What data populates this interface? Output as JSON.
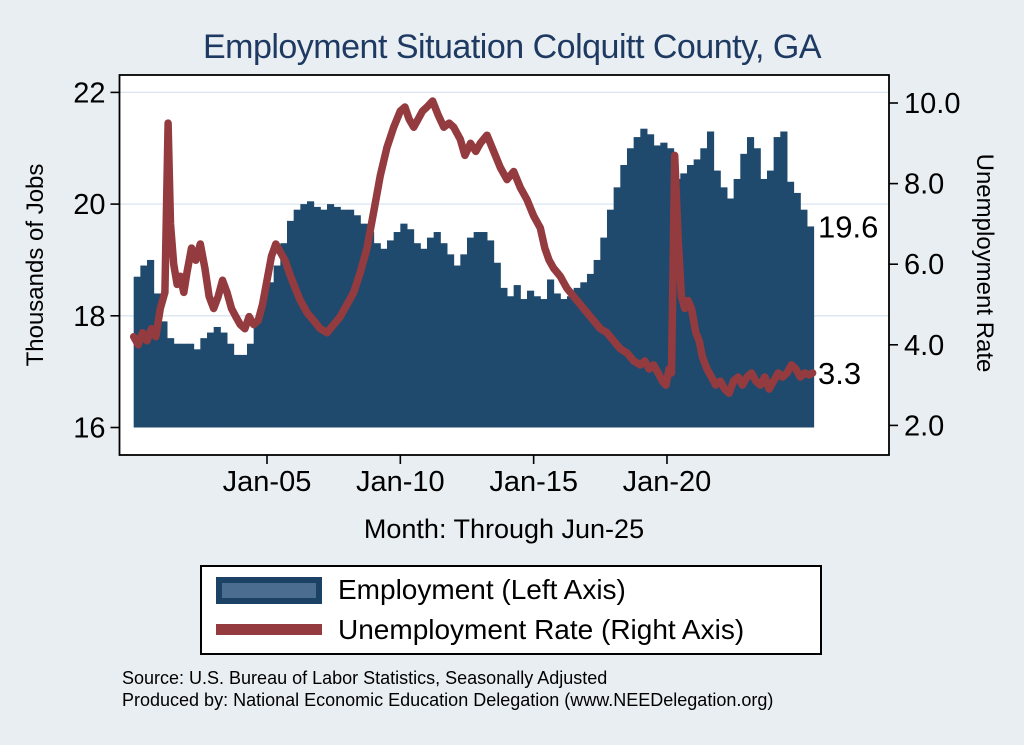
{
  "title": "Employment Situation Colquitt  County, GA",
  "footer": {
    "line1": "Source: U.S. Bureau of Labor Statistics, Seasonally Adjusted",
    "line2": "Produced by: National Economic Education Delegation (www.NEEDelegation.org)"
  },
  "legend": {
    "items": [
      {
        "label": "Employment (Left Axis)",
        "swatch": "bar"
      },
      {
        "label": "Unemployment Rate (Right Axis)",
        "swatch": "line"
      }
    ]
  },
  "colors": {
    "background": "#e9eef2",
    "plot_background": "#ffffff",
    "bar": "#1f4a6d",
    "bar_swatch_outer": "#1b4165",
    "bar_swatch_inner": "#4a6d90",
    "line": "#943b3f",
    "title_text": "#1e3a62",
    "gridline": "#d9e5f0",
    "axis_text": "#000000"
  },
  "chart_data": {
    "type": "combo",
    "title": "Employment Situation Colquitt  County, GA",
    "x_axis": {
      "caption": "Month: Through Jun-25",
      "ticks": [
        {
          "label": "Jan-05",
          "t": 2005.0
        },
        {
          "label": "Jan-10",
          "t": 2010.0
        },
        {
          "label": "Jan-15",
          "t": 2015.0
        },
        {
          "label": "Jan-20",
          "t": 2020.0
        }
      ]
    },
    "left_axis": {
      "label": "Thousands of Jobs",
      "ticks": [
        16,
        18,
        20,
        22
      ],
      "range": [
        16,
        22.8
      ]
    },
    "right_axis": {
      "label": "Unemployment Rate",
      "tick_labels": [
        "2.0",
        "4.0",
        "6.0",
        "8.0",
        "10.0"
      ],
      "tick_values": [
        2,
        4,
        6,
        8,
        10
      ],
      "range": [
        2,
        10.5
      ]
    },
    "annotations": [
      {
        "text": "19.6",
        "axis": "left",
        "value": 19.6
      },
      {
        "text": "3.3",
        "axis": "right",
        "value": 3.3
      }
    ],
    "series": [
      {
        "name": "Employment (Left Axis)",
        "type": "bar",
        "axis": "left",
        "unit": "thousands of jobs",
        "frequency": "quarterly",
        "start_t": 2000.0,
        "step_t": 0.25,
        "values": [
          18.7,
          18.9,
          19.0,
          18.4,
          17.9,
          17.6,
          17.5,
          17.5,
          17.5,
          17.4,
          17.6,
          17.7,
          17.8,
          17.7,
          17.5,
          17.3,
          17.3,
          17.5,
          17.9,
          18.3,
          18.6,
          18.9,
          19.3,
          19.7,
          19.9,
          20.0,
          20.05,
          19.95,
          19.9,
          20.0,
          19.95,
          19.9,
          19.9,
          19.8,
          19.65,
          19.5,
          19.3,
          19.2,
          19.35,
          19.5,
          19.65,
          19.55,
          19.3,
          19.2,
          19.4,
          19.5,
          19.3,
          19.1,
          18.9,
          19.1,
          19.4,
          19.5,
          19.5,
          19.35,
          18.95,
          18.5,
          18.35,
          18.55,
          18.3,
          18.45,
          18.35,
          18.3,
          18.65,
          18.4,
          18.3,
          18.35,
          18.5,
          18.6,
          18.75,
          19.0,
          19.4,
          19.9,
          20.3,
          20.7,
          21.0,
          21.2,
          21.35,
          21.25,
          21.05,
          21.1,
          21.0,
          20.45,
          20.55,
          20.7,
          20.8,
          21.0,
          21.3,
          20.6,
          20.3,
          20.1,
          20.45,
          20.9,
          21.2,
          21.0,
          20.45,
          20.6,
          21.2,
          21.3,
          20.4,
          20.2,
          19.9,
          19.6
        ],
        "last_value": 19.6
      },
      {
        "name": "Unemployment Rate (Right Axis)",
        "type": "line",
        "axis": "right",
        "unit": "percent",
        "keypoints": [
          [
            2000.0,
            4.2
          ],
          [
            2000.17,
            4.0
          ],
          [
            2000.33,
            4.3
          ],
          [
            2000.5,
            4.1
          ],
          [
            2000.67,
            4.4
          ],
          [
            2000.83,
            4.2
          ],
          [
            2001.0,
            4.9
          ],
          [
            2001.17,
            5.3
          ],
          [
            2001.29,
            9.5
          ],
          [
            2001.38,
            7.0
          ],
          [
            2001.5,
            6.0
          ],
          [
            2001.63,
            5.5
          ],
          [
            2001.75,
            5.7
          ],
          [
            2001.88,
            5.3
          ],
          [
            2002.0,
            5.8
          ],
          [
            2002.17,
            6.4
          ],
          [
            2002.33,
            6.1
          ],
          [
            2002.5,
            6.5
          ],
          [
            2002.67,
            5.9
          ],
          [
            2002.83,
            5.2
          ],
          [
            2003.0,
            4.9
          ],
          [
            2003.17,
            5.2
          ],
          [
            2003.33,
            5.6
          ],
          [
            2003.5,
            5.3
          ],
          [
            2003.67,
            4.9
          ],
          [
            2003.83,
            4.7
          ],
          [
            2004.0,
            4.5
          ],
          [
            2004.17,
            4.4
          ],
          [
            2004.33,
            4.7
          ],
          [
            2004.5,
            4.5
          ],
          [
            2004.67,
            4.6
          ],
          [
            2004.83,
            5.0
          ],
          [
            2005.0,
            5.6
          ],
          [
            2005.17,
            6.2
          ],
          [
            2005.33,
            6.5
          ],
          [
            2005.5,
            6.3
          ],
          [
            2005.67,
            6.1
          ],
          [
            2005.83,
            5.8
          ],
          [
            2006.0,
            5.5
          ],
          [
            2006.25,
            5.1
          ],
          [
            2006.5,
            4.8
          ],
          [
            2006.75,
            4.6
          ],
          [
            2007.0,
            4.4
          ],
          [
            2007.25,
            4.3
          ],
          [
            2007.5,
            4.5
          ],
          [
            2007.75,
            4.7
          ],
          [
            2008.0,
            5.0
          ],
          [
            2008.25,
            5.3
          ],
          [
            2008.5,
            5.8
          ],
          [
            2008.75,
            6.4
          ],
          [
            2009.0,
            7.3
          ],
          [
            2009.25,
            8.2
          ],
          [
            2009.5,
            8.9
          ],
          [
            2009.75,
            9.4
          ],
          [
            2010.0,
            9.8
          ],
          [
            2010.17,
            9.9
          ],
          [
            2010.33,
            9.6
          ],
          [
            2010.5,
            9.4
          ],
          [
            2010.67,
            9.6
          ],
          [
            2010.83,
            9.8
          ],
          [
            2011.0,
            9.9
          ],
          [
            2011.21,
            10.05
          ],
          [
            2011.42,
            9.7
          ],
          [
            2011.63,
            9.4
          ],
          [
            2011.83,
            9.5
          ],
          [
            2012.0,
            9.4
          ],
          [
            2012.25,
            9.1
          ],
          [
            2012.42,
            8.7
          ],
          [
            2012.63,
            9.0
          ],
          [
            2012.83,
            8.8
          ],
          [
            2013.0,
            9.0
          ],
          [
            2013.25,
            9.2
          ],
          [
            2013.5,
            8.8
          ],
          [
            2013.75,
            8.4
          ],
          [
            2014.0,
            8.1
          ],
          [
            2014.25,
            8.3
          ],
          [
            2014.5,
            7.9
          ],
          [
            2014.75,
            7.6
          ],
          [
            2015.0,
            7.2
          ],
          [
            2015.25,
            6.9
          ],
          [
            2015.42,
            6.4
          ],
          [
            2015.58,
            6.1
          ],
          [
            2015.75,
            5.9
          ],
          [
            2016.0,
            5.7
          ],
          [
            2016.25,
            5.4
          ],
          [
            2016.5,
            5.2
          ],
          [
            2016.75,
            5.0
          ],
          [
            2017.0,
            4.8
          ],
          [
            2017.25,
            4.6
          ],
          [
            2017.5,
            4.4
          ],
          [
            2017.75,
            4.3
          ],
          [
            2018.0,
            4.1
          ],
          [
            2018.25,
            3.9
          ],
          [
            2018.5,
            3.8
          ],
          [
            2018.75,
            3.6
          ],
          [
            2019.0,
            3.5
          ],
          [
            2019.17,
            3.6
          ],
          [
            2019.33,
            3.4
          ],
          [
            2019.5,
            3.5
          ],
          [
            2019.67,
            3.3
          ],
          [
            2019.83,
            3.1
          ],
          [
            2019.96,
            3.0
          ],
          [
            2020.08,
            3.4
          ],
          [
            2020.17,
            3.3
          ],
          [
            2020.29,
            8.7
          ],
          [
            2020.42,
            6.6
          ],
          [
            2020.54,
            5.2
          ],
          [
            2020.67,
            4.9
          ],
          [
            2020.79,
            5.1
          ],
          [
            2020.92,
            4.9
          ],
          [
            2021.08,
            4.3
          ],
          [
            2021.21,
            4.1
          ],
          [
            2021.33,
            3.7
          ],
          [
            2021.5,
            3.4
          ],
          [
            2021.67,
            3.2
          ],
          [
            2021.83,
            3.0
          ],
          [
            2022.0,
            3.1
          ],
          [
            2022.17,
            2.9
          ],
          [
            2022.33,
            2.8
          ],
          [
            2022.5,
            3.1
          ],
          [
            2022.67,
            3.2
          ],
          [
            2022.83,
            3.0
          ],
          [
            2023.0,
            3.2
          ],
          [
            2023.17,
            3.3
          ],
          [
            2023.33,
            3.1
          ],
          [
            2023.5,
            3.0
          ],
          [
            2023.67,
            3.2
          ],
          [
            2023.83,
            2.9
          ],
          [
            2024.0,
            3.1
          ],
          [
            2024.17,
            3.3
          ],
          [
            2024.33,
            3.2
          ],
          [
            2024.5,
            3.3
          ],
          [
            2024.67,
            3.5
          ],
          [
            2024.83,
            3.4
          ],
          [
            2025.0,
            3.2
          ],
          [
            2025.17,
            3.3
          ],
          [
            2025.33,
            3.25
          ],
          [
            2025.46,
            3.3
          ]
        ],
        "last_value": 3.3
      }
    ]
  }
}
